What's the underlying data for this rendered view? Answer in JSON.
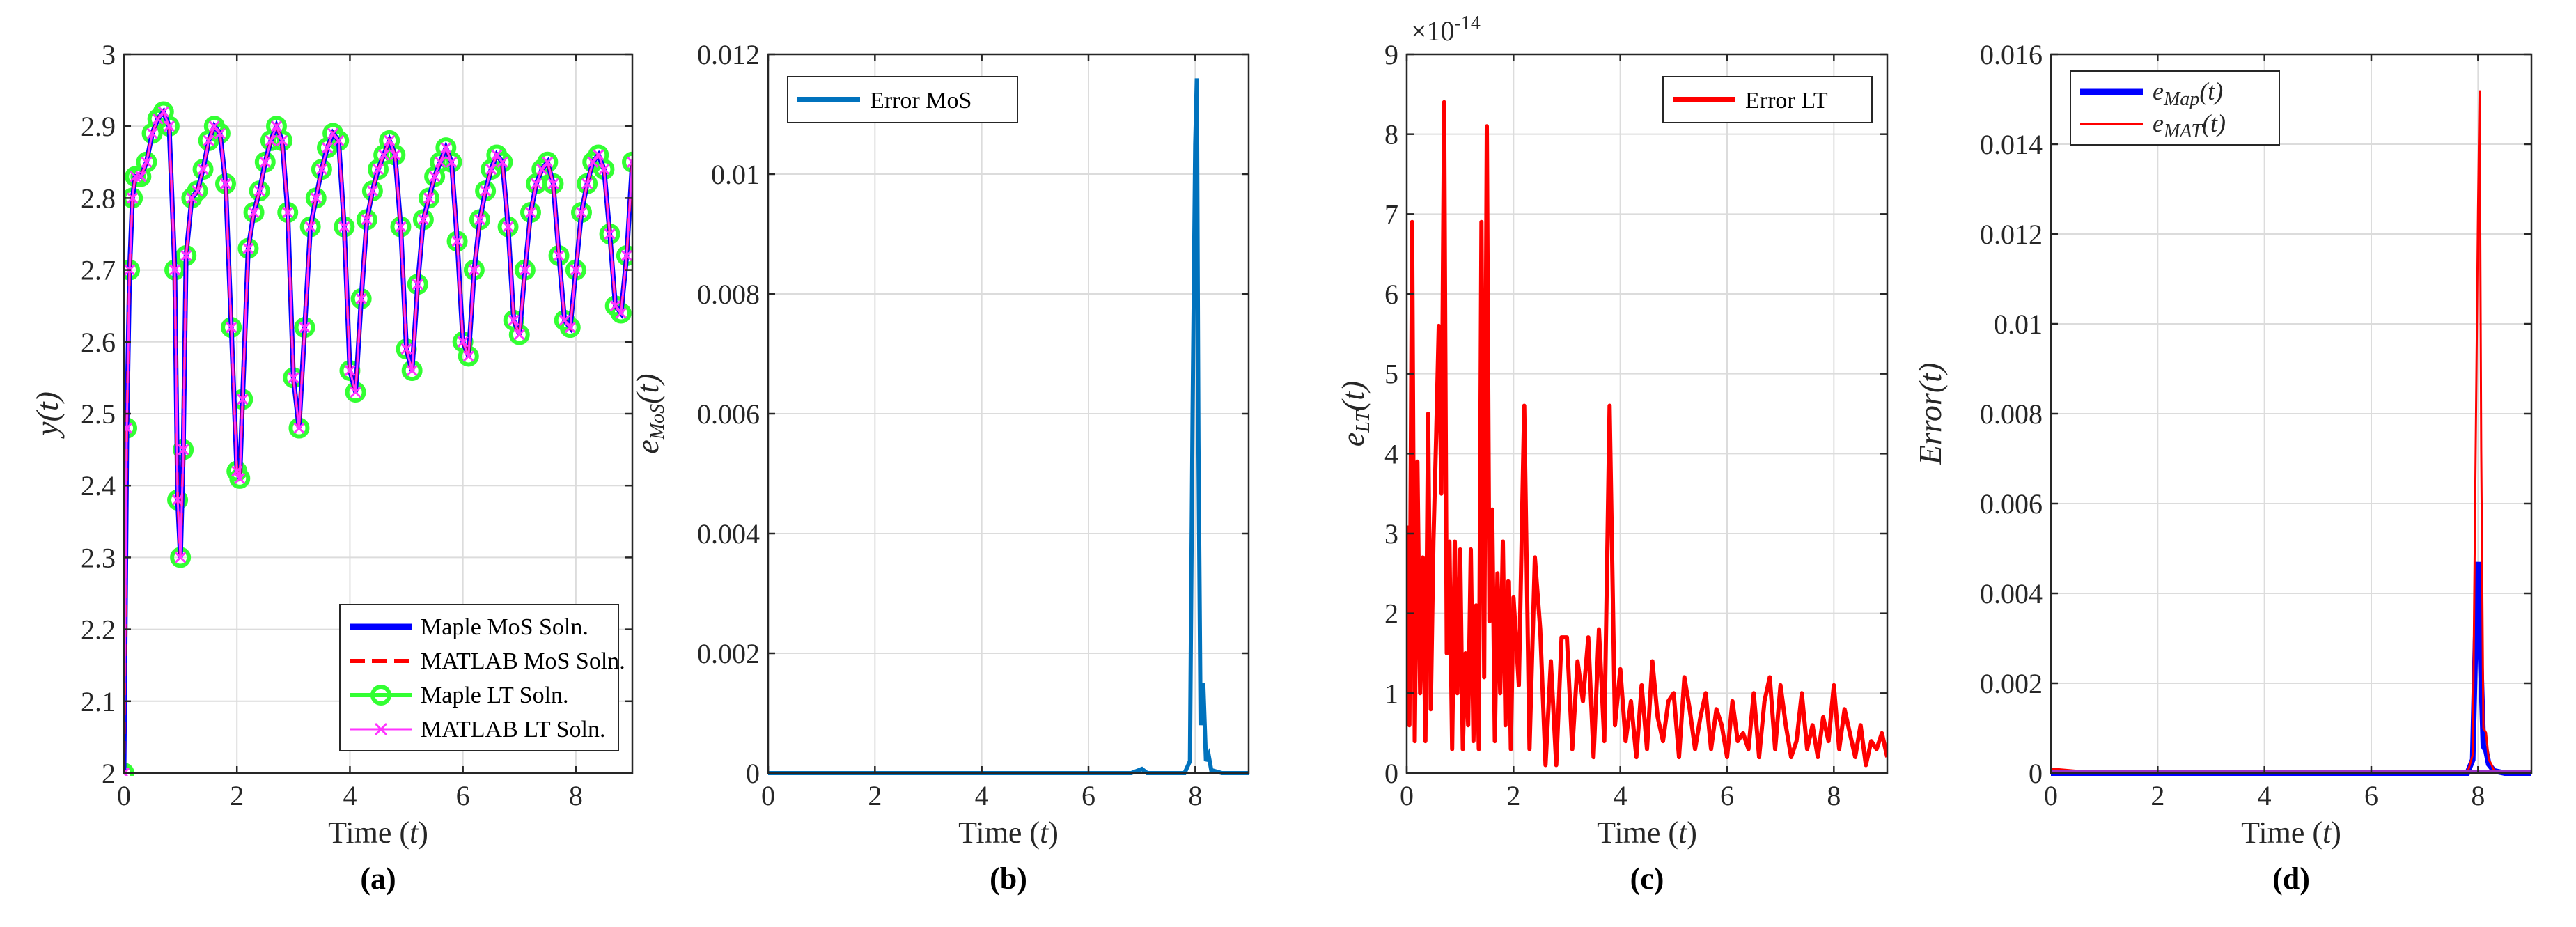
{
  "chart_data": [
    {
      "id": "a",
      "type": "line",
      "caption": "(a)",
      "xlabel": "Time (t)",
      "ylabel": "y(t)",
      "xlim": [
        0,
        9
      ],
      "ylim": [
        2,
        3
      ],
      "xticks": [
        0,
        2,
        4,
        6,
        8
      ],
      "yticks": [
        2,
        2.1,
        2.2,
        2.3,
        2.4,
        2.5,
        2.6,
        2.7,
        2.8,
        2.9,
        3
      ],
      "ytick_labels": [
        "2",
        "2.1",
        "2.2",
        "2.3",
        "2.4",
        "2.5",
        "2.6",
        "2.7",
        "2.8",
        "2.9",
        "3"
      ],
      "legend_position": "bottom-right",
      "legend": [
        "Maple MoS Soln.",
        "MATLAB MoS Soln.",
        "Maple LT Soln.",
        "MATLAB LT Soln."
      ],
      "series": [
        {
          "name": "Maple MoS Soln.",
          "color": "#0000ff",
          "style": "solid"
        },
        {
          "name": "MATLAB MoS Soln.",
          "color": "#ff0000",
          "style": "dashed"
        },
        {
          "name": "Maple LT Soln.",
          "color": "#33ff33",
          "style": "circle-marker"
        },
        {
          "name": "MATLAB LT Soln.",
          "color": "#ff33ff",
          "style": "x-marker"
        }
      ],
      "x": [
        0,
        0.05,
        0.1,
        0.15,
        0.2,
        0.3,
        0.4,
        0.5,
        0.6,
        0.7,
        0.8,
        0.9,
        0.95,
        1.0,
        1.05,
        1.1,
        1.2,
        1.3,
        1.4,
        1.5,
        1.6,
        1.7,
        1.8,
        1.9,
        2.0,
        2.05,
        2.1,
        2.2,
        2.3,
        2.4,
        2.5,
        2.6,
        2.7,
        2.8,
        2.9,
        3.0,
        3.1,
        3.2,
        3.3,
        3.4,
        3.5,
        3.6,
        3.7,
        3.8,
        3.9,
        4.0,
        4.1,
        4.2,
        4.3,
        4.4,
        4.5,
        4.6,
        4.7,
        4.8,
        4.9,
        5.0,
        5.1,
        5.2,
        5.3,
        5.4,
        5.5,
        5.6,
        5.7,
        5.8,
        5.9,
        6.0,
        6.1,
        6.2,
        6.3,
        6.4,
        6.5,
        6.6,
        6.7,
        6.8,
        6.9,
        7.0,
        7.1,
        7.2,
        7.3,
        7.4,
        7.5,
        7.6,
        7.7,
        7.8,
        7.9,
        8.0,
        8.1,
        8.2,
        8.3,
        8.4,
        8.5,
        8.6,
        8.7,
        8.8,
        8.9,
        9.0
      ],
      "y": [
        2.0,
        2.48,
        2.7,
        2.8,
        2.83,
        2.83,
        2.85,
        2.89,
        2.91,
        2.92,
        2.9,
        2.7,
        2.38,
        2.3,
        2.45,
        2.72,
        2.8,
        2.81,
        2.84,
        2.88,
        2.9,
        2.89,
        2.82,
        2.62,
        2.42,
        2.41,
        2.52,
        2.73,
        2.78,
        2.81,
        2.85,
        2.88,
        2.9,
        2.88,
        2.78,
        2.55,
        2.48,
        2.62,
        2.76,
        2.8,
        2.84,
        2.87,
        2.89,
        2.88,
        2.76,
        2.56,
        2.53,
        2.66,
        2.77,
        2.81,
        2.84,
        2.86,
        2.88,
        2.86,
        2.76,
        2.59,
        2.56,
        2.68,
        2.77,
        2.8,
        2.83,
        2.85,
        2.87,
        2.85,
        2.74,
        2.6,
        2.58,
        2.7,
        2.77,
        2.81,
        2.84,
        2.86,
        2.85,
        2.76,
        2.63,
        2.61,
        2.7,
        2.78,
        2.82,
        2.84,
        2.85,
        2.82,
        2.72,
        2.63,
        2.62,
        2.7,
        2.78,
        2.82,
        2.85,
        2.86,
        2.84,
        2.75,
        2.65,
        2.64,
        2.72,
        2.85
      ]
    },
    {
      "id": "b",
      "type": "line",
      "caption": "(b)",
      "xlabel": "Time (t)",
      "ylabel": "e_MoS(t)",
      "xlim": [
        0,
        9
      ],
      "ylim": [
        0,
        0.012
      ],
      "xticks": [
        0,
        2,
        4,
        6,
        8
      ],
      "yticks": [
        0,
        0.002,
        0.004,
        0.006,
        0.008,
        0.01,
        0.012
      ],
      "ytick_labels": [
        "0",
        "0.002",
        "0.004",
        "0.006",
        "0.008",
        "0.01",
        "0.012"
      ],
      "legend_position": "top-left",
      "legend": [
        "Error MoS"
      ],
      "series": [
        {
          "name": "Error MoS",
          "color": "#0072bd",
          "style": "solid"
        }
      ],
      "x": [
        0,
        1,
        2,
        3,
        4,
        5,
        6,
        6.8,
        7.0,
        7.1,
        7.5,
        7.8,
        7.9,
        7.95,
        8.0,
        8.03,
        8.06,
        8.1,
        8.15,
        8.2,
        8.25,
        8.3,
        8.5,
        9.0
      ],
      "y": [
        0,
        0,
        0,
        0,
        0,
        0,
        0,
        0,
        7e-05,
        0,
        0,
        0,
        0.0002,
        0.006,
        0.0105,
        0.0116,
        0.0055,
        0.0008,
        0.0015,
        0.0002,
        0.0003,
        5e-05,
        0,
        0
      ]
    },
    {
      "id": "c",
      "type": "line",
      "caption": "(c)",
      "xlabel": "Time (t)",
      "ylabel": "e_LT(t)",
      "exponent_label": "×10^-14",
      "xlim": [
        0,
        9
      ],
      "ylim": [
        0,
        9
      ],
      "xticks": [
        0,
        2,
        4,
        6,
        8
      ],
      "yticks": [
        0,
        1,
        2,
        3,
        4,
        5,
        6,
        7,
        8,
        9
      ],
      "ytick_labels": [
        "0",
        "1",
        "2",
        "3",
        "4",
        "5",
        "6",
        "7",
        "8",
        "9"
      ],
      "legend_position": "top-right",
      "legend": [
        "Error LT"
      ],
      "series": [
        {
          "name": "Error LT",
          "color": "#ff0000",
          "style": "solid"
        }
      ],
      "x": [
        0,
        0.05,
        0.1,
        0.15,
        0.2,
        0.25,
        0.3,
        0.35,
        0.4,
        0.45,
        0.5,
        0.55,
        0.6,
        0.65,
        0.7,
        0.75,
        0.8,
        0.85,
        0.9,
        0.95,
        1.0,
        1.05,
        1.1,
        1.15,
        1.2,
        1.25,
        1.3,
        1.35,
        1.4,
        1.45,
        1.5,
        1.55,
        1.6,
        1.65,
        1.7,
        1.75,
        1.8,
        1.85,
        1.9,
        1.95,
        2.0,
        2.1,
        2.2,
        2.3,
        2.4,
        2.5,
        2.6,
        2.7,
        2.8,
        2.9,
        3.0,
        3.1,
        3.2,
        3.3,
        3.4,
        3.5,
        3.6,
        3.7,
        3.8,
        3.9,
        4.0,
        4.1,
        4.2,
        4.3,
        4.4,
        4.5,
        4.6,
        4.7,
        4.8,
        4.9,
        5.0,
        5.1,
        5.2,
        5.3,
        5.4,
        5.5,
        5.6,
        5.7,
        5.8,
        5.9,
        6.0,
        6.1,
        6.2,
        6.3,
        6.4,
        6.5,
        6.6,
        6.7,
        6.8,
        6.9,
        7.0,
        7.1,
        7.2,
        7.3,
        7.4,
        7.5,
        7.6,
        7.7,
        7.8,
        7.9,
        8.0,
        8.1,
        8.2,
        8.3,
        8.4,
        8.5,
        8.6,
        8.7,
        8.8,
        8.9,
        9.0
      ],
      "y": [
        3.1,
        0.6,
        6.9,
        0.4,
        3.9,
        1.0,
        2.7,
        0.4,
        4.5,
        0.8,
        2.9,
        4.2,
        5.6,
        3.5,
        8.4,
        1.5,
        2.9,
        0.3,
        2.9,
        1.0,
        2.8,
        0.3,
        1.5,
        0.6,
        2.8,
        0.4,
        2.1,
        0.3,
        6.9,
        1.2,
        8.1,
        1.9,
        3.3,
        0.4,
        2.5,
        1.0,
        2.9,
        0.6,
        2.4,
        0.3,
        2.2,
        1.1,
        4.6,
        0.3,
        2.7,
        1.8,
        0.1,
        1.4,
        0.1,
        1.7,
        1.7,
        0.3,
        1.4,
        0.9,
        1.7,
        0.2,
        1.8,
        0.4,
        4.6,
        0.6,
        1.3,
        0.4,
        0.9,
        0.2,
        1.1,
        0.3,
        1.4,
        0.7,
        0.4,
        0.9,
        1.0,
        0.2,
        1.2,
        0.8,
        0.3,
        0.7,
        1.0,
        0.3,
        0.8,
        0.6,
        0.2,
        0.9,
        0.4,
        0.5,
        0.3,
        1.0,
        0.2,
        0.9,
        1.2,
        0.3,
        1.1,
        0.6,
        0.2,
        0.4,
        1.0,
        0.3,
        0.6,
        0.2,
        0.7,
        0.4,
        1.1,
        0.3,
        0.8,
        0.5,
        0.2,
        0.6,
        0.1,
        0.4,
        0.3,
        0.5,
        0.2
      ]
    },
    {
      "id": "d",
      "type": "line",
      "caption": "(d)",
      "xlabel": "Time (t)",
      "ylabel": "Error(t)",
      "xlim": [
        0,
        9
      ],
      "ylim": [
        0,
        0.016
      ],
      "xticks": [
        0,
        2,
        4,
        6,
        8
      ],
      "yticks": [
        0,
        0.002,
        0.004,
        0.006,
        0.008,
        0.01,
        0.012,
        0.014,
        0.016
      ],
      "ytick_labels": [
        "0",
        "0.002",
        "0.004",
        "0.006",
        "0.008",
        "0.01",
        "0.012",
        "0.014",
        "0.016"
      ],
      "legend_position": "top-left",
      "legend": [
        "e_Map(t)",
        "e_MAT(t)"
      ],
      "series": [
        {
          "name": "e_Map(t)",
          "color": "#0000ff",
          "style": "solid-thick",
          "x": [
            0,
            1,
            2,
            3,
            4,
            5,
            6,
            7,
            7.8,
            7.9,
            7.95,
            8.0,
            8.05,
            8.1,
            8.15,
            8.2,
            8.3,
            8.5,
            9.0
          ],
          "y": [
            0,
            0,
            0,
            0,
            0,
            0,
            0,
            0,
            0,
            0.0003,
            0.0028,
            0.0047,
            0.0025,
            0.0006,
            0.0005,
            0.0002,
            5e-05,
            0,
            0
          ]
        },
        {
          "name": "e_MAT(t)",
          "color": "#ff0000",
          "style": "solid-thin",
          "x": [
            0,
            1,
            2,
            3,
            4,
            5,
            6,
            6.8,
            7.0,
            7.1,
            7.8,
            7.9,
            7.95,
            8.0,
            8.03,
            8.06,
            8.1,
            8.15,
            8.2,
            8.25,
            8.3,
            8.5,
            9.0
          ],
          "y": [
            0.0001,
            0,
            0,
            0,
            0,
            0,
            0,
            0,
            5e-05,
            0,
            0,
            0.0004,
            0.0065,
            0.0125,
            0.0152,
            0.0072,
            0.001,
            0.0009,
            0.0003,
            0.0002,
            5e-05,
            0,
            0
          ]
        }
      ]
    }
  ]
}
